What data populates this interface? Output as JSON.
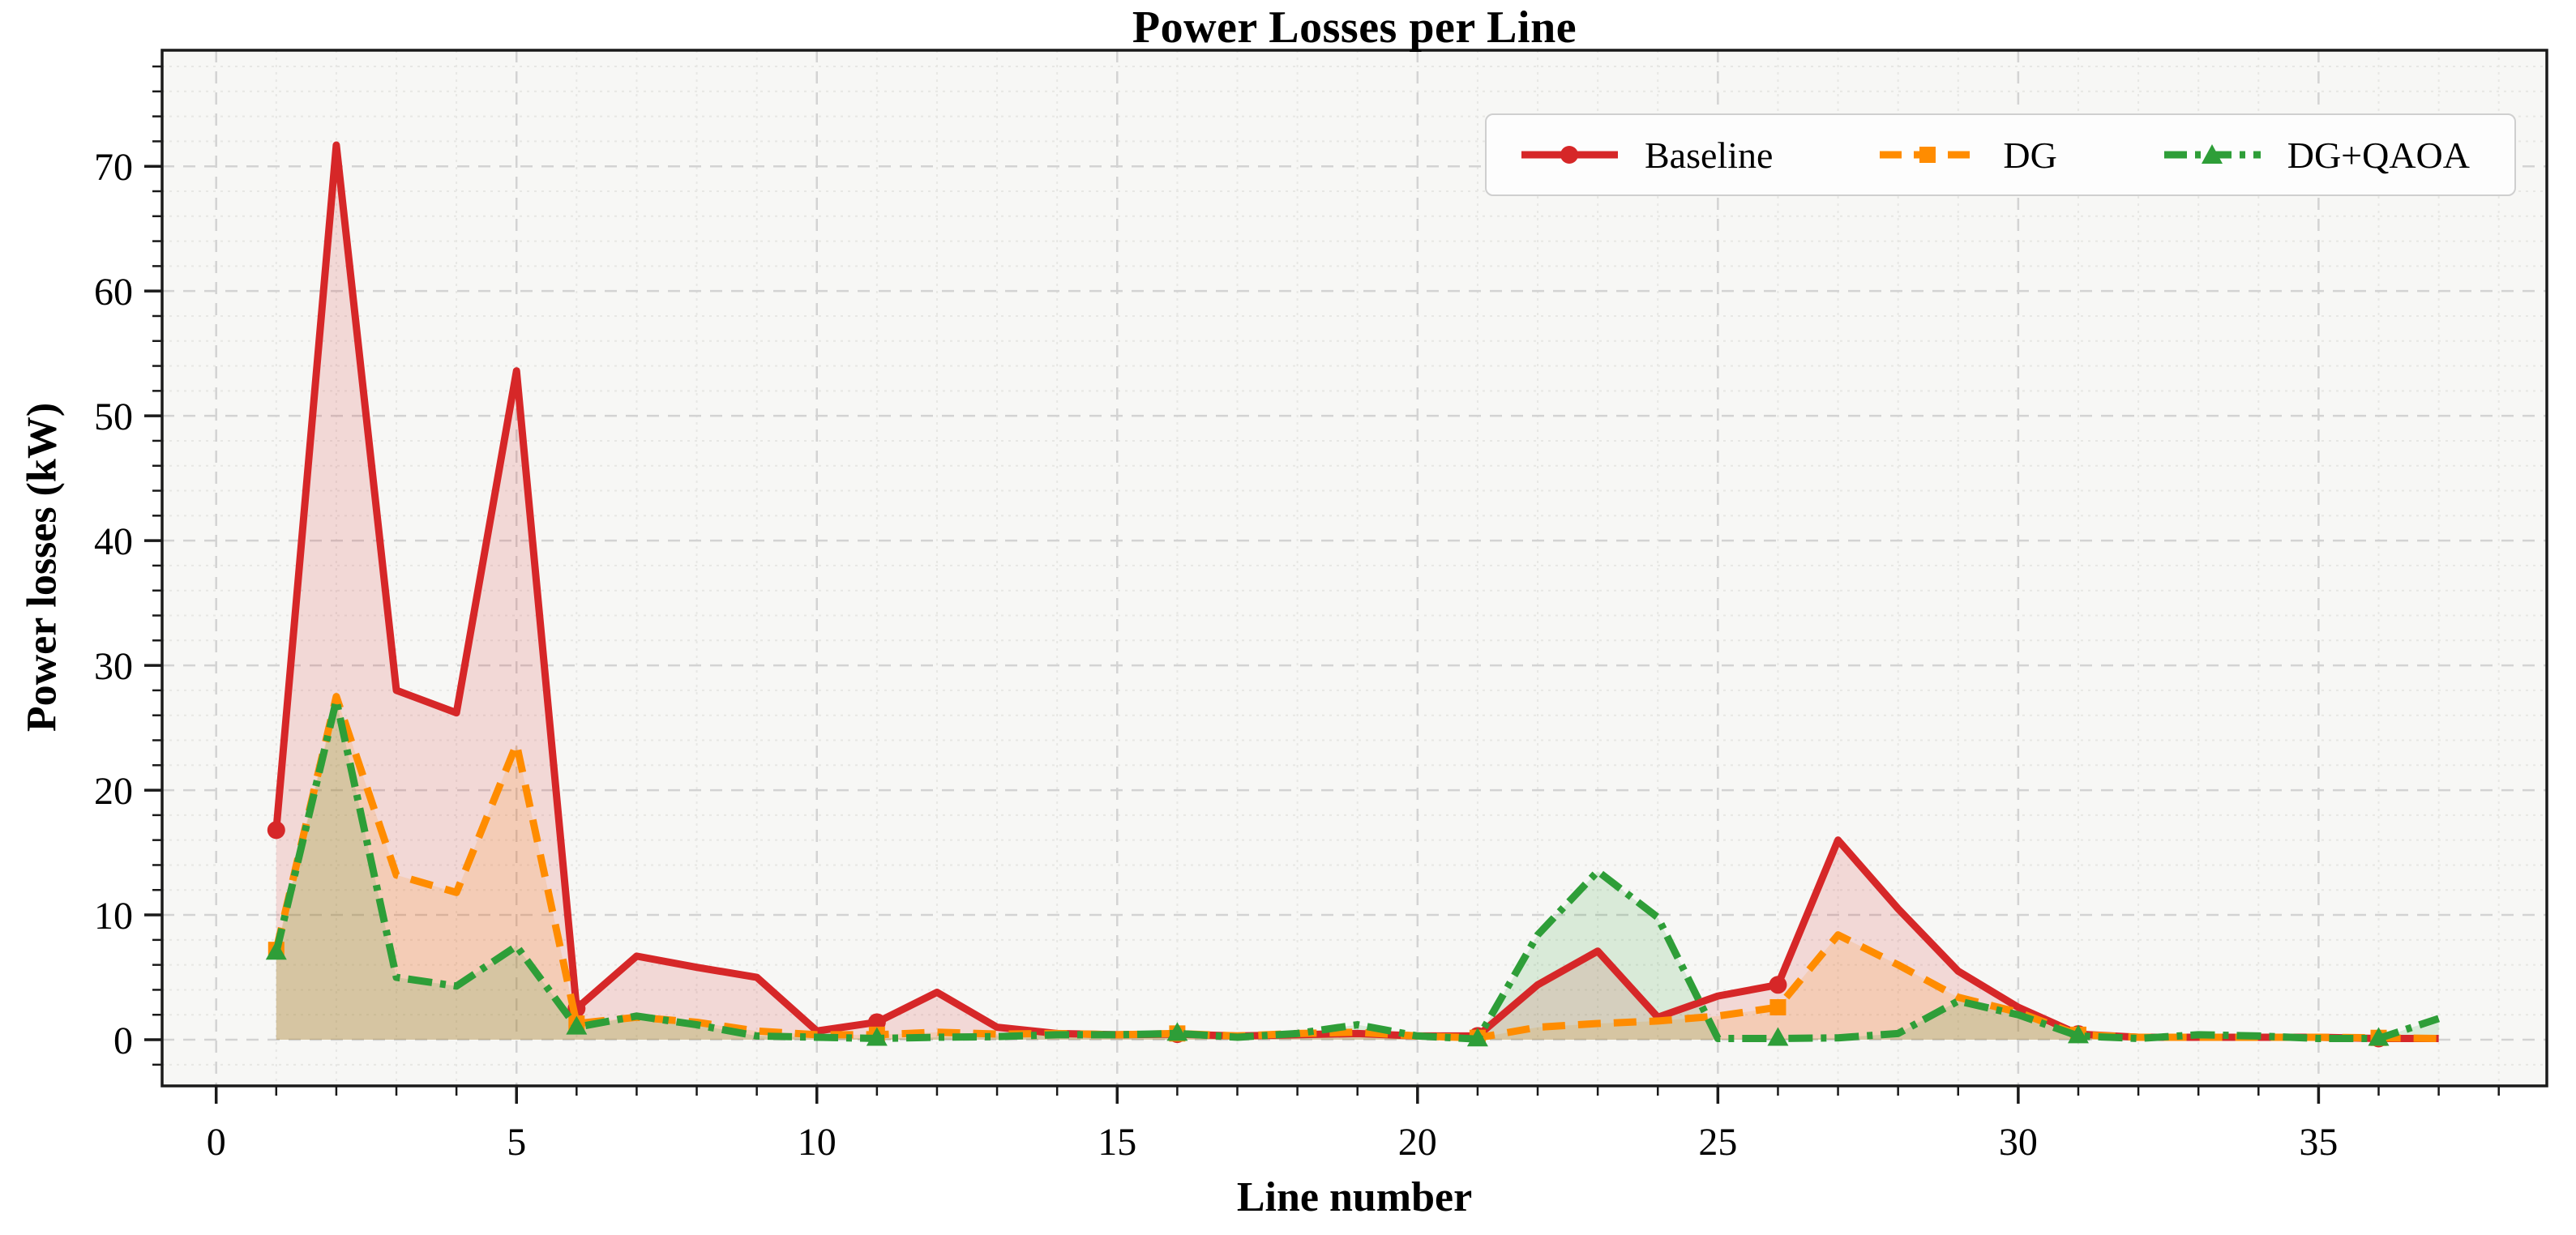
{
  "chart_data": {
    "type": "line",
    "title": "Power Losses per Line",
    "xlabel": "Line number",
    "ylabel": "Power losses (kW)",
    "x": [
      1,
      2,
      3,
      4,
      5,
      6,
      7,
      8,
      9,
      10,
      11,
      12,
      13,
      14,
      15,
      16,
      17,
      18,
      19,
      20,
      21,
      22,
      23,
      24,
      25,
      26,
      27,
      28,
      29,
      30,
      31,
      32,
      33,
      34,
      35,
      36,
      37
    ],
    "series": [
      {
        "name": "Baseline",
        "color": "#d62728",
        "style": "solid",
        "marker": "circle",
        "values": [
          16.8,
          71.7,
          28.0,
          26.2,
          53.6,
          2.5,
          6.7,
          5.8,
          5.0,
          0.7,
          1.4,
          3.8,
          1.0,
          0.5,
          0.4,
          0.45,
          0.3,
          0.4,
          0.5,
          0.3,
          0.3,
          4.4,
          7.1,
          1.8,
          3.5,
          4.4,
          16.0,
          10.5,
          5.5,
          2.6,
          0.45,
          0.2,
          0.2,
          0.2,
          0.2,
          0.1,
          0.1
        ]
      },
      {
        "name": "DG",
        "color": "#ff8c00",
        "style": "dashed",
        "marker": "square",
        "values": [
          7.2,
          27.5,
          13.2,
          11.8,
          23.7,
          1.3,
          1.8,
          1.4,
          0.7,
          0.4,
          0.4,
          0.6,
          0.45,
          0.5,
          0.4,
          0.5,
          0.3,
          0.5,
          0.6,
          0.3,
          0.15,
          1.0,
          1.3,
          1.5,
          1.9,
          2.6,
          8.4,
          6.0,
          3.4,
          2.2,
          0.4,
          0.2,
          0.2,
          0.2,
          0.2,
          0.15,
          0.1
        ]
      },
      {
        "name": "DG+QAOA",
        "color": "#2e9e38",
        "style": "dashdot",
        "marker": "triangle",
        "values": [
          7.0,
          27.2,
          5.0,
          4.3,
          7.5,
          1.0,
          1.9,
          1.2,
          0.3,
          0.2,
          0.1,
          0.2,
          0.25,
          0.4,
          0.4,
          0.5,
          0.2,
          0.5,
          1.2,
          0.3,
          0.05,
          8.4,
          13.5,
          9.8,
          0.1,
          0.1,
          0.15,
          0.5,
          3.1,
          2.0,
          0.3,
          0.1,
          0.4,
          0.3,
          0.1,
          0.1,
          1.7
        ]
      }
    ],
    "xlim": [
      -0.9,
      38.8
    ],
    "ylim": [
      -3.7,
      79.3
    ],
    "x_major_ticks": [
      0,
      5,
      10,
      15,
      20,
      25,
      30,
      35
    ],
    "y_major_ticks": [
      0,
      10,
      20,
      30,
      40,
      50,
      60,
      70
    ],
    "x_minor_step": 1,
    "y_minor_step": 2,
    "marker_every": 5,
    "fill_alpha": 0.15,
    "grid": true,
    "legend_position": "upper right",
    "plot_background": "#f7f7f5",
    "major_grid_color": "#d3d3d3",
    "minor_grid_color": "#e7e7e4",
    "spine_color": "#1a1a1a"
  }
}
